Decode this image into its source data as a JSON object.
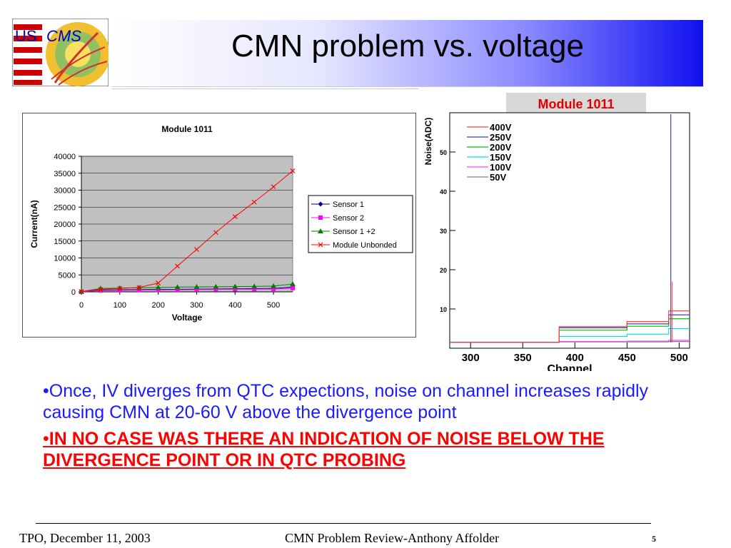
{
  "slide": {
    "title": "CMN problem vs. voltage",
    "logo_text": {
      "us": "US",
      "cms": "CMS"
    },
    "bullets": [
      "•Once, IV diverges from QTC expections, noise on channel increases rapidly causing CMN at 20-60 V above the divergence point",
      "IN NO CASE WAS THERE AN INDICATION OF NOISE BELOW THE DIVERGENCE POINT OR IN QTC PROBING"
    ],
    "bullet_marker": "•",
    "footer": {
      "left": "TPO, December 11, 2003",
      "center": "CMN Problem Review-Anthony Affolder",
      "page": "5"
    }
  },
  "chart_data": [
    {
      "type": "line",
      "title": "Module 1011",
      "xlabel": "Voltage",
      "ylabel": "Current(nA)",
      "xlim": [
        0,
        550
      ],
      "ylim": [
        0,
        40000
      ],
      "xticks": [
        0,
        100,
        200,
        300,
        400,
        500
      ],
      "yticks": [
        0,
        5000,
        10000,
        15000,
        20000,
        25000,
        30000,
        35000,
        40000
      ],
      "grid": true,
      "legend": "right",
      "colors": {
        "Sensor 1": "#000080",
        "Sensor 2": "#ff00ff",
        "Sensor 1 +2": "#008000",
        "Module Unbonded": "#ff0000",
        "plot_bg": "#c0c0c0"
      },
      "series": [
        {
          "name": "Sensor 1",
          "marker": "diamond",
          "x": [
            0,
            50,
            100,
            150,
            200,
            250,
            300,
            350,
            400,
            450,
            500,
            550
          ],
          "y": [
            50,
            500,
            600,
            650,
            700,
            750,
            800,
            850,
            900,
            950,
            1000,
            1400
          ]
        },
        {
          "name": "Sensor 2",
          "marker": "square",
          "x": [
            0,
            50,
            100,
            150,
            200,
            250,
            300,
            350,
            400,
            450,
            500,
            550
          ],
          "y": [
            30,
            400,
            450,
            500,
            550,
            600,
            650,
            700,
            750,
            800,
            850,
            1100
          ]
        },
        {
          "name": "Sensor 1 +2",
          "marker": "triangle",
          "x": [
            0,
            50,
            100,
            150,
            200,
            250,
            300,
            350,
            400,
            450,
            500,
            550
          ],
          "y": [
            80,
            1000,
            1100,
            1200,
            1300,
            1400,
            1450,
            1500,
            1550,
            1600,
            1700,
            2300
          ]
        },
        {
          "name": "Module Unbonded",
          "marker": "x",
          "x": [
            0,
            50,
            100,
            150,
            200,
            250,
            300,
            350,
            400,
            450,
            500,
            550
          ],
          "y": [
            100,
            700,
            1000,
            1300,
            2600,
            7600,
            12500,
            17500,
            22200,
            26500,
            31000,
            35700
          ]
        }
      ]
    },
    {
      "type": "line",
      "title": "Module 1011",
      "xlabel": "Channel",
      "ylabel": "Noise(ADC)",
      "xlim": [
        280,
        510
      ],
      "ylim": [
        0,
        60
      ],
      "xticks": [
        300,
        350,
        400,
        450,
        500
      ],
      "yticks": [
        10,
        20,
        30,
        40,
        50
      ],
      "legend": "top-left",
      "colors": {
        "400V": "#ff4040",
        "250V": "#4040c0",
        "200V": "#00c000",
        "150V": "#00e0e0",
        "100V": "#ff40ff",
        "50V": "#808080",
        "title_bg": "#d8d8d8",
        "title_fg": "#e00000"
      },
      "series": [
        {
          "name": "400V",
          "base": 1.5,
          "levels": [
            [
              280,
              1.5
            ],
            [
              385,
              5.5
            ],
            [
              450,
              6.8
            ],
            [
              490,
              9.5
            ]
          ]
        },
        {
          "name": "250V",
          "base": 1.5,
          "levels": [
            [
              280,
              1.5
            ],
            [
              385,
              5.2
            ],
            [
              450,
              6.2
            ],
            [
              490,
              8.5
            ]
          ]
        },
        {
          "name": "200V",
          "base": 1.5,
          "levels": [
            [
              280,
              1.5
            ],
            [
              385,
              4.6
            ],
            [
              450,
              5.6
            ],
            [
              490,
              7.5
            ]
          ]
        },
        {
          "name": "150V",
          "base": 1.5,
          "levels": [
            [
              280,
              1.5
            ],
            [
              385,
              3.0
            ],
            [
              450,
              3.6
            ],
            [
              490,
              5.0
            ]
          ]
        },
        {
          "name": "100V",
          "base": 1.5,
          "levels": [
            [
              280,
              1.5
            ],
            [
              385,
              1.7
            ],
            [
              450,
              1.8
            ],
            [
              490,
              2.0
            ]
          ]
        },
        {
          "name": "50V",
          "base": 1.5,
          "levels": [
            [
              280,
              1.5
            ],
            [
              385,
              1.6
            ],
            [
              450,
              1.6
            ],
            [
              490,
              1.7
            ]
          ]
        }
      ]
    }
  ]
}
